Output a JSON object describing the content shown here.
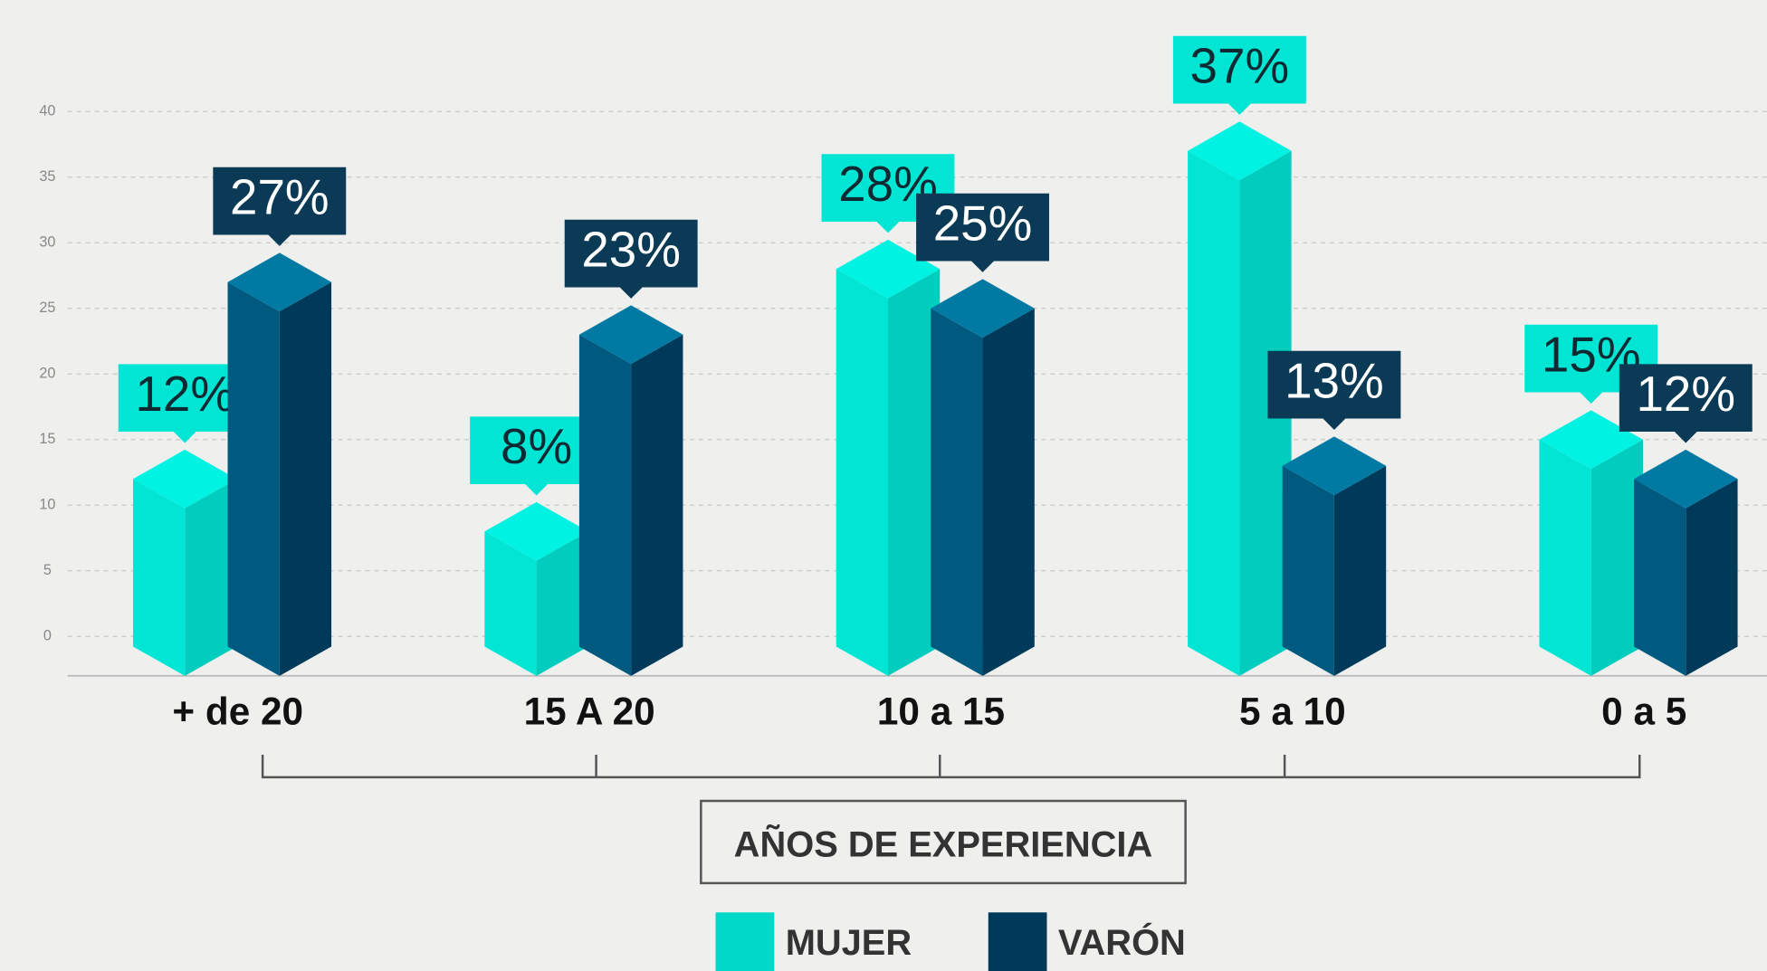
{
  "chart_data": {
    "type": "bar3d",
    "x_label": "AÑOS DE EXPERIENCIA",
    "categories": [
      "+ de 20",
      "15 A 20",
      "10 a 15",
      "5 a 10",
      "0 a 5"
    ],
    "series": [
      {
        "name": "MUJER",
        "color": "#00d9c8",
        "values": [
          12,
          8,
          28,
          37,
          15
        ],
        "value_labels": [
          "12%",
          "8%",
          "28%",
          "37%",
          "15%"
        ]
      },
      {
        "name": "VARÓN",
        "color": "#003a5a",
        "values": [
          27,
          23,
          25,
          13,
          12
        ],
        "value_labels": [
          "27%",
          "23%",
          "25%",
          "13%",
          "12%"
        ]
      }
    ],
    "ylim": [
      0,
      40
    ],
    "yticks": [
      0,
      5,
      10,
      15,
      20,
      25,
      30,
      35,
      40
    ],
    "grid": true
  }
}
